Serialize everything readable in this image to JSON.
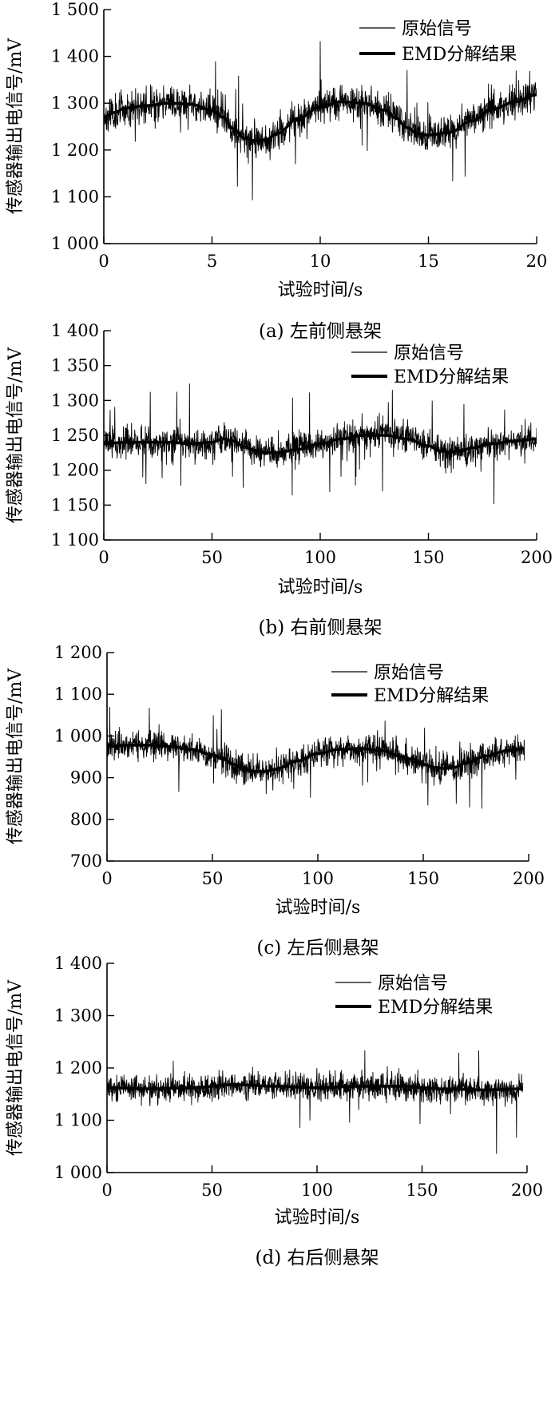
{
  "chart_data": [
    {
      "type": "line",
      "caption": "(a) 左前侧悬架",
      "xlabel": "试验时间/s",
      "ylabel": "传感器输出电信号/mV",
      "xlim": [
        0,
        20
      ],
      "ylim": [
        1000,
        1500
      ],
      "xticks": [
        0,
        5,
        10,
        15,
        20
      ],
      "xtick_labels": [
        "0",
        "5",
        "10",
        "15",
        "20"
      ],
      "yticks": [
        1000,
        1100,
        1200,
        1300,
        1400,
        1500
      ],
      "ytick_labels": [
        "1 000",
        "1 100",
        "1 200",
        "1 300",
        "1 400",
        "1 500"
      ],
      "grid": false,
      "legend": "top-right",
      "series": [
        {
          "name": "原始信号",
          "style": "thin",
          "noise": {
            "sigma": 18,
            "spike_amplitude": 100,
            "seed": 11
          },
          "x": [
            0,
            0.5,
            1,
            2,
            3,
            4,
            5,
            5.5,
            6,
            6.5,
            7,
            7.5,
            8,
            9,
            10,
            11,
            12,
            13,
            13.5,
            14,
            14.5,
            15,
            16,
            17,
            18,
            19,
            20
          ],
          "y": [
            1270,
            1280,
            1290,
            1295,
            1300,
            1298,
            1285,
            1270,
            1245,
            1225,
            1220,
            1222,
            1235,
            1268,
            1292,
            1303,
            1300,
            1285,
            1268,
            1248,
            1235,
            1232,
            1238,
            1262,
            1288,
            1303,
            1318
          ]
        },
        {
          "name": "EMD分解结果",
          "style": "thick",
          "x": [
            0,
            0.5,
            1,
            2,
            3,
            4,
            5,
            5.5,
            6,
            6.5,
            7,
            7.5,
            8,
            9,
            10,
            11,
            12,
            13,
            13.5,
            14,
            14.5,
            15,
            16,
            17,
            18,
            19,
            20
          ],
          "y": [
            1270,
            1280,
            1290,
            1295,
            1300,
            1298,
            1285,
            1270,
            1245,
            1225,
            1220,
            1222,
            1235,
            1268,
            1292,
            1303,
            1300,
            1285,
            1268,
            1248,
            1235,
            1232,
            1238,
            1262,
            1288,
            1303,
            1318
          ]
        }
      ]
    },
    {
      "type": "line",
      "caption": "(b) 右前侧悬架",
      "xlabel": "试验时间/s",
      "ylabel": "传感器输出电信号/mV",
      "xlim": [
        0,
        200
      ],
      "ylim": [
        1100,
        1400
      ],
      "xticks": [
        0,
        50,
        100,
        150,
        200
      ],
      "xtick_labels": [
        "0",
        "50",
        "100",
        "150",
        "200"
      ],
      "yticks": [
        1100,
        1150,
        1200,
        1250,
        1300,
        1350,
        1400
      ],
      "ytick_labels": [
        "1 100",
        "1 150",
        "1 200",
        "1 250",
        "1 300",
        "1 350",
        "1 400"
      ],
      "grid": false,
      "legend": "top-right",
      "series": [
        {
          "name": "原始信号",
          "style": "thin",
          "noise": {
            "sigma": 11,
            "spike_amplitude": 70,
            "seed": 23
          },
          "x": [
            0,
            10,
            20,
            30,
            40,
            50,
            55,
            60,
            65,
            70,
            75,
            80,
            90,
            100,
            110,
            120,
            130,
            140,
            150,
            155,
            160,
            165,
            170,
            180,
            190,
            200
          ],
          "y": [
            1238,
            1240,
            1240,
            1240,
            1238,
            1240,
            1245,
            1242,
            1233,
            1228,
            1225,
            1225,
            1230,
            1238,
            1245,
            1250,
            1250,
            1245,
            1235,
            1228,
            1226,
            1228,
            1232,
            1238,
            1242,
            1245
          ]
        },
        {
          "name": "EMD分解结果",
          "style": "thick",
          "x": [
            0,
            10,
            20,
            30,
            40,
            50,
            55,
            60,
            65,
            70,
            75,
            80,
            90,
            100,
            110,
            120,
            130,
            140,
            150,
            155,
            160,
            165,
            170,
            180,
            190,
            200
          ],
          "y": [
            1238,
            1240,
            1240,
            1240,
            1238,
            1240,
            1245,
            1242,
            1233,
            1228,
            1225,
            1225,
            1230,
            1238,
            1245,
            1250,
            1250,
            1245,
            1235,
            1228,
            1226,
            1228,
            1232,
            1238,
            1242,
            1245
          ]
        }
      ]
    },
    {
      "type": "line",
      "caption": "(c) 左后侧悬架",
      "xlabel": "试验时间/s",
      "ylabel": "传感器输出电信号/mV",
      "xlim": [
        0,
        200
      ],
      "ylim": [
        700,
        1200
      ],
      "xticks": [
        0,
        50,
        100,
        150,
        200
      ],
      "xtick_labels": [
        "0",
        "50",
        "100",
        "150",
        "200"
      ],
      "yticks": [
        700,
        800,
        900,
        1000,
        1100,
        1200
      ],
      "ytick_labels": [
        "700",
        "800",
        "900",
        "1 000",
        "1 100",
        "1 200"
      ],
      "grid": false,
      "legend": "top-right",
      "series": [
        {
          "name": "原始信号",
          "style": "thin",
          "noise": {
            "sigma": 17,
            "spike_amplitude": 100,
            "seed": 37
          },
          "x": [
            0,
            10,
            20,
            30,
            40,
            50,
            55,
            60,
            65,
            70,
            75,
            80,
            90,
            100,
            110,
            120,
            130,
            140,
            150,
            155,
            160,
            165,
            170,
            180,
            190,
            198
          ],
          "y": [
            975,
            978,
            978,
            975,
            968,
            955,
            945,
            932,
            920,
            915,
            915,
            920,
            940,
            958,
            968,
            970,
            965,
            950,
            932,
            925,
            922,
            925,
            935,
            952,
            965,
            970
          ]
        },
        {
          "name": "EMD分解结果",
          "style": "thick",
          "x": [
            0,
            10,
            20,
            30,
            40,
            50,
            55,
            60,
            65,
            70,
            75,
            80,
            90,
            100,
            110,
            120,
            130,
            140,
            150,
            155,
            160,
            165,
            170,
            180,
            190,
            198
          ],
          "y": [
            975,
            978,
            978,
            975,
            968,
            955,
            945,
            932,
            920,
            915,
            915,
            920,
            940,
            958,
            968,
            970,
            965,
            950,
            932,
            925,
            922,
            925,
            935,
            952,
            965,
            970
          ]
        }
      ]
    },
    {
      "type": "line",
      "caption": "(d) 右后侧悬架",
      "xlabel": "试验时间/s",
      "ylabel": "传感器输出电信号/mV",
      "xlim": [
        0,
        200
      ],
      "ylim": [
        1000,
        1400
      ],
      "xticks": [
        0,
        50,
        100,
        150,
        200
      ],
      "xtick_labels": [
        "0",
        "50",
        "100",
        "150",
        "200"
      ],
      "yticks": [
        1000,
        1100,
        1200,
        1300,
        1400
      ],
      "ytick_labels": [
        "1 000",
        "1 100",
        "1 200",
        "1 300",
        "1 400"
      ],
      "grid": false,
      "legend": "top-right",
      "series": [
        {
          "name": "原始信号",
          "style": "thin",
          "noise": {
            "sigma": 13,
            "spike_amplitude": 90,
            "seed": 53
          },
          "x": [
            0,
            20,
            40,
            60,
            80,
            100,
            120,
            140,
            160,
            180,
            198
          ],
          "y": [
            1162,
            1160,
            1162,
            1168,
            1165,
            1162,
            1165,
            1165,
            1160,
            1158,
            1160
          ]
        },
        {
          "name": "EMD分解结果",
          "style": "thick",
          "x": [
            0,
            20,
            40,
            60,
            80,
            100,
            120,
            140,
            160,
            180,
            198
          ],
          "y": [
            1162,
            1160,
            1162,
            1168,
            1165,
            1162,
            1165,
            1165,
            1160,
            1158,
            1160
          ]
        }
      ]
    }
  ]
}
